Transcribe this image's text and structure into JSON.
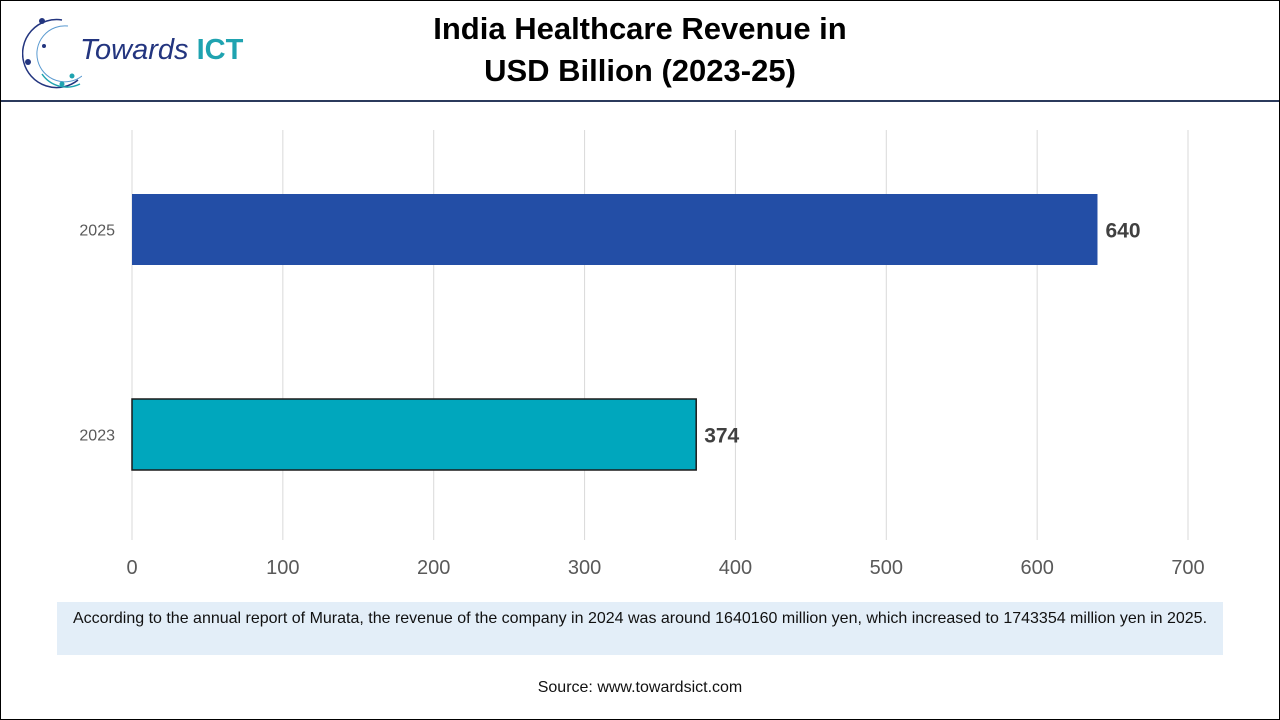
{
  "header": {
    "title_line1": "India Healthcare Revenue in",
    "title_line2": "USD Billion (2023-25)",
    "logo_text": "Towards",
    "logo_accent": "ICT"
  },
  "chart_data": {
    "type": "bar",
    "orientation": "horizontal",
    "categories": [
      "2025",
      "2023"
    ],
    "values": [
      640,
      374
    ],
    "colors": [
      "#234ea6",
      "#00a7bd"
    ],
    "xlim": [
      0,
      700
    ],
    "xticks": [
      "0",
      "100",
      "200",
      "300",
      "400",
      "500",
      "600",
      "700"
    ],
    "grid": true,
    "data_labels": [
      "640",
      "374"
    ]
  },
  "caption": "According to the annual report of Murata, the revenue of the company in 2024 was around 1640160 million yen, which increased to 1743354 million yen in 2025.",
  "source": "Source: www.towardsict.com"
}
